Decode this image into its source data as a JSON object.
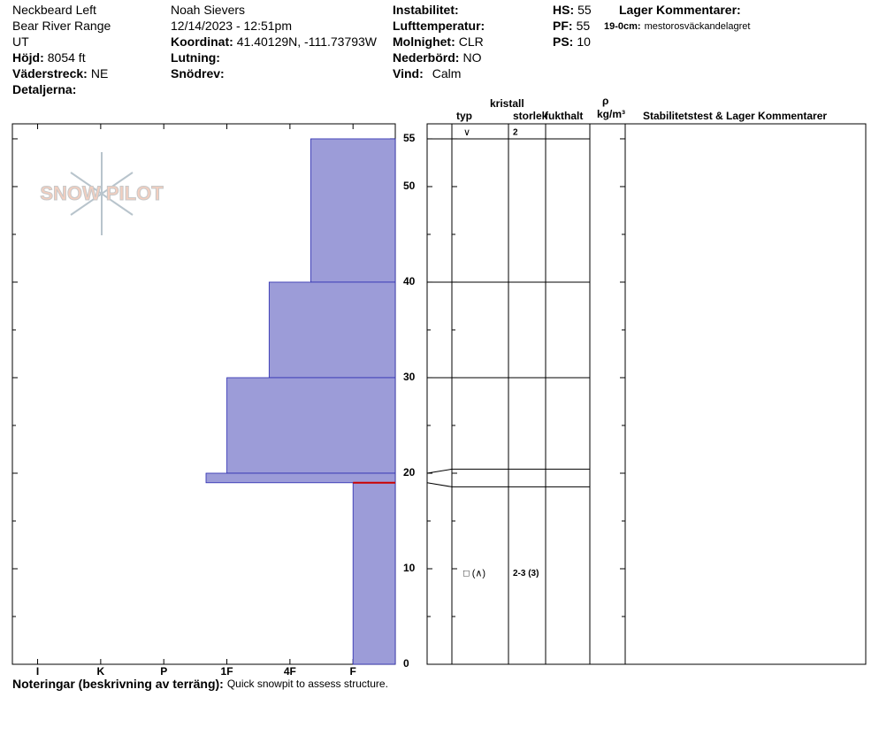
{
  "header": {
    "columns": [
      [
        {
          "text": "Neckbeard Left"
        },
        {
          "text": "Bear River Range"
        },
        {
          "text": "UT"
        },
        {
          "label": "Höjd:",
          "value": "8054 ft"
        },
        {
          "label": "Väderstreck:",
          "value": "NE"
        },
        {
          "label": "Detaljerna:"
        }
      ],
      [
        {
          "text": "Noah Sievers"
        },
        {
          "text": "12/14/2023 - 12:51pm"
        },
        {
          "label": "Koordinat:",
          "value": "41.40129N, -111.73793W"
        },
        {
          "label": "Lutning:"
        },
        {
          "label": "Snödrev:"
        }
      ],
      [
        {
          "label": "Instabilitet:"
        },
        {
          "label": "Lufttemperatur:"
        },
        {
          "label": "Molnighet:",
          "value": "CLR"
        },
        {
          "label": "Nederbörd:",
          "value": "NO"
        },
        {
          "label": "Vind:",
          "value": "Calm"
        }
      ],
      [
        {
          "label": "HS:",
          "value": "55"
        },
        {
          "label": "PF:",
          "value": "55"
        },
        {
          "label": "PS:",
          "value": "10"
        }
      ],
      [
        {
          "label": "Lager Kommentarer:"
        },
        {
          "label": "19-0cm:",
          "value": "mestorosväckandelagret"
        }
      ]
    ]
  },
  "chart_data": {
    "type": "snowpit",
    "logo": "SNOW PILOT",
    "xlim": [
      0.33,
      6.4
    ],
    "xticks": [
      {
        "value": 6,
        "label": "I"
      },
      {
        "value": 5,
        "label": "K"
      },
      {
        "value": 4,
        "label": "P"
      },
      {
        "value": 3,
        "label": "1F"
      },
      {
        "value": 2,
        "label": "4F"
      },
      {
        "value": 1,
        "label": "F"
      }
    ],
    "ylim": [
      0,
      56.57
    ],
    "yticks": [
      0,
      10,
      20,
      30,
      40,
      50,
      55
    ],
    "yminor_ticks": [
      5,
      15,
      25,
      35,
      45
    ],
    "color": "#9c9cd8",
    "layers": [
      {
        "top": 55,
        "bottom": 40,
        "hardness": 1.67,
        "grain": "∨",
        "size": "2"
      },
      {
        "top": 40,
        "bottom": 30,
        "hardness": 2.33
      },
      {
        "top": 30,
        "bottom": 20,
        "hardness": 3
      },
      {
        "top": 20,
        "bottom": 19,
        "hardness": 3.33
      },
      {
        "top": 19,
        "bottom": 0,
        "hardness": 1,
        "grain": "□ (∧)",
        "size": "2-3 (3)"
      }
    ],
    "critical_layer": 19,
    "table_headers": [
      "typ",
      "kristall",
      "storlek",
      "fukthalt",
      "ρ",
      "kg/m³",
      "Stabilitetstest & Lager Kommentarer"
    ]
  },
  "footer": {
    "label": "Noteringar (beskrivning av terräng):",
    "value": "Quick snowpit to assess structure."
  }
}
